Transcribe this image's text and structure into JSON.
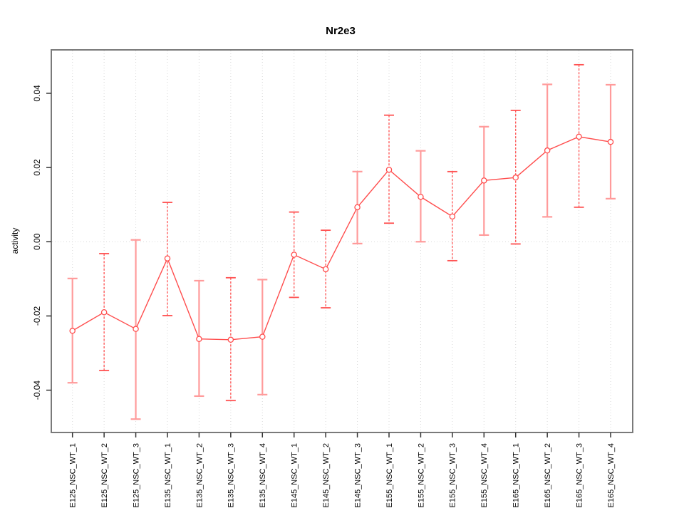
{
  "title": "Nr2e3",
  "chart_data": {
    "type": "line",
    "title": "Nr2e3",
    "xlabel": "",
    "ylabel": "activity",
    "legend": "none",
    "grid": "dotted vertical gridline at every category; dotted horizontal gridline at y=0 only",
    "categories": [
      "E125_NSC_WT_1",
      "E125_NSC_WT_2",
      "E125_NSC_WT_3",
      "E135_NSC_WT_1",
      "E135_NSC_WT_2",
      "E135_NSC_WT_3",
      "E135_NSC_WT_4",
      "E145_NSC_WT_1",
      "E145_NSC_WT_2",
      "E145_NSC_WT_3",
      "E155_NSC_WT_1",
      "E155_NSC_WT_2",
      "E155_NSC_WT_3",
      "E155_NSC_WT_4",
      "E165_NSC_WT_1",
      "E165_NSC_WT_2",
      "E165_NSC_WT_3",
      "E165_NSC_WT_4"
    ],
    "series": [
      {
        "name": "activity",
        "marker": "open-circle",
        "values": [
          -0.024,
          -0.019,
          -0.0235,
          -0.0045,
          -0.0262,
          -0.0264,
          -0.0256,
          -0.0035,
          -0.0074,
          0.0093,
          0.0194,
          0.0121,
          0.0068,
          0.0165,
          0.0173,
          0.0246,
          0.0283,
          0.0269
        ],
        "error_low": [
          -0.038,
          -0.0347,
          -0.0478,
          -0.0199,
          -0.0416,
          -0.0428,
          -0.0412,
          -0.015,
          -0.0178,
          -0.0005,
          0.005,
          0.0,
          -0.0051,
          0.0018,
          -0.0006,
          0.0067,
          0.0093,
          0.0116
        ],
        "error_high": [
          -0.0099,
          -0.0032,
          0.0005,
          0.0106,
          -0.0105,
          -0.0097,
          -0.0102,
          0.008,
          0.0031,
          0.0189,
          0.0341,
          0.0245,
          0.0189,
          0.031,
          0.0354,
          0.0424,
          0.0477,
          0.0423
        ]
      }
    ],
    "error_bar_styles": [
      "solid",
      "dashed",
      "solid",
      "dashed",
      "solid",
      "dashed",
      "solid",
      "dashed",
      "dashed",
      "solid",
      "dashed",
      "solid",
      "dashed",
      "solid",
      "dashed",
      "solid",
      "dashed",
      "solid"
    ],
    "yticks": [
      0.04,
      0.02,
      0.0,
      -0.02,
      -0.04
    ],
    "ytick_labels": [
      "0.04",
      "0.02",
      "0.00",
      "-0.02",
      "-0.04"
    ],
    "ylim": [
      -0.0514,
      0.0517
    ],
    "colors": {
      "series_line": "#ff4d4d",
      "point_stroke": "#ff4d4d",
      "error_bar_solid": "#ff9b9b",
      "error_bar_dashed": "#ff5252",
      "plot_frame": "#7a7a7a",
      "gridline": "#d8d8d8",
      "tick": "#333333",
      "text": "#000000"
    }
  }
}
